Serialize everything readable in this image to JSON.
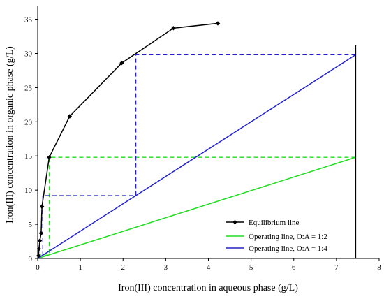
{
  "chart_data": {
    "type": "line",
    "xlabel": "Iron(III) concentration in aqueous phase (g/L)",
    "ylabel": "Iron(III) concentration in organic phase (g/L)",
    "xlim": [
      0,
      8
    ],
    "ylim": [
      0,
      37
    ],
    "x_ticks": [
      0,
      1,
      2,
      3,
      4,
      5,
      6,
      7,
      8
    ],
    "y_ticks": [
      0,
      5,
      10,
      15,
      20,
      25,
      30,
      35
    ],
    "grid": false,
    "legend_position": "bottom-right",
    "colors": {
      "equilibrium": "#000000",
      "op_12": "#22dd22",
      "op_14": "#2222cc",
      "feed_line": "#000000"
    },
    "series": [
      {
        "name": "Equilibrium line",
        "marker": "diamond",
        "x": [
          0.02,
          0.03,
          0.05,
          0.08,
          0.1,
          0.27,
          0.75,
          1.97,
          3.18,
          4.22
        ],
        "y": [
          0.4,
          1.4,
          2.6,
          3.7,
          7.6,
          14.8,
          20.8,
          28.6,
          33.7,
          34.4
        ]
      },
      {
        "name": "Operating line, O:A = 1:2",
        "x": [
          0,
          7.45
        ],
        "y": [
          0,
          14.8
        ]
      },
      {
        "name": "Operating line, O:A = 1:4",
        "x": [
          0,
          7.45
        ],
        "y": [
          0,
          29.8
        ]
      }
    ],
    "feed_line": {
      "x": 7.45,
      "y_range": [
        0,
        31.2
      ]
    },
    "stages_12": {
      "x": [
        7.45,
        0.27,
        0.27,
        0.05,
        0.05
      ],
      "y": [
        14.8,
        14.8,
        0.5,
        0.5,
        0.3
      ]
    },
    "stages_14": {
      "x": [
        7.45,
        2.3,
        2.3,
        0.12,
        0.12
      ],
      "y": [
        29.8,
        29.8,
        9.2,
        9.2,
        0.4
      ]
    }
  }
}
